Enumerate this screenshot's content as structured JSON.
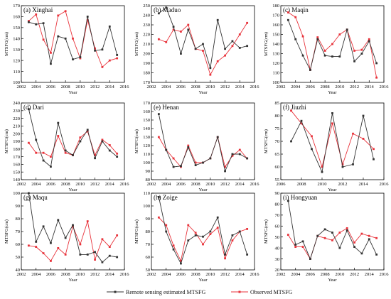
{
  "colors": {
    "remote": "#333333",
    "observed": "#e8333b",
    "axis": "#000000"
  },
  "legend": {
    "remote_label": "Remote sensing estimated MTSFG",
    "observed_label": "Observed MTSFG"
  },
  "chart_data": [
    {
      "type": "line",
      "title": "(a) Xinghai",
      "xlabel": "Year",
      "ylabel": "MTSFG(cm)",
      "xlim": [
        2002,
        2016
      ],
      "ylim": [
        100,
        170
      ],
      "xticks": [
        2002,
        2004,
        2006,
        2008,
        2010,
        2012,
        2014,
        2016
      ],
      "yticks": [
        100,
        110,
        120,
        130,
        140,
        150,
        160,
        170
      ],
      "x": [
        2003,
        2004,
        2005,
        2006,
        2007,
        2008,
        2009,
        2010,
        2011,
        2012,
        2013,
        2014,
        2015
      ],
      "series": [
        {
          "key": "remote",
          "values": [
            155,
            153,
            154,
            117,
            142,
            140,
            121,
            123,
            160,
            129,
            130,
            151,
            125
          ]
        },
        {
          "key": "observed",
          "values": [
            156,
            162,
            139,
            127,
            161,
            165,
            140,
            122,
            157,
            131,
            114,
            120,
            122
          ]
        }
      ]
    },
    {
      "type": "line",
      "title": "(b) Maduo",
      "xlabel": "Year",
      "ylabel": "MTSFG(cm)",
      "xlim": [
        2002,
        2016
      ],
      "ylim": [
        170,
        250
      ],
      "xticks": [
        2002,
        2004,
        2006,
        2008,
        2010,
        2012,
        2014,
        2016
      ],
      "yticks": [
        170,
        180,
        190,
        200,
        210,
        220,
        230,
        240,
        250
      ],
      "x": [
        2003,
        2004,
        2005,
        2006,
        2007,
        2008,
        2009,
        2010,
        2011,
        2012,
        2013,
        2014,
        2015
      ],
      "series": [
        {
          "key": "remote",
          "values": [
            242,
            248,
            228,
            200,
            225,
            205,
            210,
            185,
            235,
            205,
            213,
            206,
            208
          ]
        },
        {
          "key": "observed",
          "values": [
            215,
            212,
            225,
            223,
            230,
            205,
            203,
            178,
            192,
            198,
            208,
            220,
            232
          ]
        }
      ]
    },
    {
      "type": "line",
      "title": "(c) Maqin",
      "xlabel": "Year",
      "ylabel": "MTSFG(cm)",
      "xlim": [
        2002,
        2016
      ],
      "ylim": [
        100,
        180
      ],
      "xticks": [
        2002,
        2004,
        2006,
        2008,
        2010,
        2012,
        2014,
        2016
      ],
      "yticks": [
        100,
        110,
        120,
        130,
        140,
        150,
        160,
        170,
        180
      ],
      "x": [
        2003,
        2004,
        2005,
        2006,
        2007,
        2008,
        2009,
        2010,
        2011,
        2012,
        2013,
        2014,
        2015
      ],
      "series": [
        {
          "key": "remote",
          "values": [
            165,
            145,
            128,
            113,
            145,
            128,
            127,
            127,
            155,
            122,
            130,
            143,
            120
          ]
        },
        {
          "key": "observed",
          "values": [
            173,
            168,
            148,
            113,
            147,
            133,
            140,
            150,
            155,
            133,
            134,
            145,
            105
          ]
        }
      ]
    },
    {
      "type": "line",
      "title": "(d) Dari",
      "xlabel": "Year",
      "ylabel": "MTSFG(cm)",
      "xlim": [
        2002,
        2016
      ],
      "ylim": [
        140,
        240
      ],
      "xticks": [
        2002,
        2004,
        2006,
        2008,
        2010,
        2012,
        2014,
        2016
      ],
      "yticks": [
        140,
        150,
        160,
        170,
        180,
        190,
        200,
        210,
        220,
        230,
        240
      ],
      "x": [
        2003,
        2004,
        2005,
        2006,
        2007,
        2008,
        2009,
        2010,
        2011,
        2012,
        2013,
        2014,
        2015
      ],
      "series": [
        {
          "key": "remote",
          "values": [
            232,
            192,
            165,
            157,
            214,
            178,
            172,
            190,
            205,
            168,
            190,
            178,
            170
          ]
        },
        {
          "key": "observed",
          "values": [
            188,
            175,
            175,
            170,
            197,
            175,
            172,
            195,
            203,
            172,
            192,
            185,
            174
          ]
        }
      ]
    },
    {
      "type": "line",
      "title": "(e) Henan",
      "xlabel": "Year",
      "ylabel": "MTSFG(cm)",
      "xlim": [
        2002,
        2016
      ],
      "ylim": [
        80,
        170
      ],
      "xticks": [
        2002,
        2004,
        2006,
        2008,
        2010,
        2012,
        2014,
        2016
      ],
      "yticks": [
        80,
        90,
        100,
        110,
        120,
        130,
        140,
        150,
        160,
        170
      ],
      "x": [
        2003,
        2004,
        2005,
        2006,
        2007,
        2008,
        2009,
        2010,
        2011,
        2012,
        2013,
        2014,
        2015
      ],
      "series": [
        {
          "key": "remote",
          "values": [
            157,
            115,
            95,
            96,
            118,
            97,
            100,
            105,
            130,
            90,
            110,
            110,
            105
          ]
        },
        {
          "key": "observed",
          "values": [
            130,
            115,
            105,
            95,
            120,
            100,
            100,
            105,
            130,
            95,
            108,
            115,
            105
          ]
        }
      ]
    },
    {
      "type": "line",
      "title": "(f) Jiuzhi",
      "xlabel": "Year",
      "ylabel": "MTSFG(cm)",
      "xlim": [
        2006,
        2016
      ],
      "ylim": [
        55,
        85
      ],
      "xticks": [
        2006,
        2008,
        2010,
        2012,
        2014,
        2016
      ],
      "yticks": [
        55,
        60,
        65,
        70,
        75,
        80,
        85
      ],
      "x": [
        2007,
        2008,
        2009,
        2010,
        2011,
        2012,
        2013,
        2014,
        2015
      ],
      "series": [
        {
          "key": "remote",
          "values": [
            70,
            78,
            67,
            58,
            81,
            60,
            61,
            80,
            63
          ]
        },
        {
          "key": "observed",
          "values": [
            82,
            77,
            72,
            60,
            77,
            61,
            73,
            71,
            67
          ]
        }
      ]
    },
    {
      "type": "line",
      "title": "(g) Maqu",
      "xlabel": "Year",
      "ylabel": "MTSFG(cm)",
      "xlim": [
        2002,
        2016
      ],
      "ylim": [
        40,
        100
      ],
      "xticks": [
        2002,
        2004,
        2006,
        2008,
        2010,
        2012,
        2014,
        2016
      ],
      "yticks": [
        40,
        50,
        60,
        70,
        80,
        90,
        100
      ],
      "x": [
        2003,
        2004,
        2005,
        2006,
        2007,
        2008,
        2009,
        2010,
        2011,
        2012,
        2013,
        2014,
        2015
      ],
      "series": [
        {
          "key": "remote",
          "values": [
            100,
            62,
            74,
            61,
            79,
            65,
            75,
            52,
            52,
            54,
            46,
            51,
            50
          ]
        },
        {
          "key": "observed",
          "values": [
            59,
            58,
            53,
            47,
            57,
            52,
            74,
            60,
            78,
            48,
            64,
            58,
            67
          ]
        }
      ]
    },
    {
      "type": "line",
      "title": "(h) Zoige",
      "xlabel": "Year",
      "ylabel": "MTSFG(cm)",
      "xlim": [
        2002,
        2016
      ],
      "ylim": [
        50,
        110
      ],
      "xticks": [
        2002,
        2004,
        2006,
        2008,
        2010,
        2012,
        2014,
        2016
      ],
      "yticks": [
        50,
        60,
        70,
        80,
        90,
        100,
        110
      ],
      "x": [
        2003,
        2004,
        2005,
        2006,
        2007,
        2008,
        2009,
        2010,
        2011,
        2012,
        2013,
        2014,
        2015
      ],
      "series": [
        {
          "key": "remote",
          "values": [
            107,
            80,
            66,
            55,
            73,
            77,
            76,
            80,
            91,
            62,
            77,
            80,
            62
          ]
        },
        {
          "key": "observed",
          "values": [
            91,
            85,
            69,
            57,
            85,
            79,
            70,
            78,
            83,
            59,
            73,
            80,
            82
          ]
        }
      ]
    },
    {
      "type": "line",
      "title": "(i) Hongyuan",
      "xlabel": "Year",
      "ylabel": "MTSFG(cm)",
      "xlim": [
        2002,
        2016
      ],
      "ylim": [
        20,
        90
      ],
      "xticks": [
        2002,
        2004,
        2006,
        2008,
        2010,
        2012,
        2014,
        2016
      ],
      "yticks": [
        20,
        30,
        40,
        50,
        60,
        70,
        80,
        90
      ],
      "x": [
        2003,
        2004,
        2005,
        2006,
        2007,
        2008,
        2009,
        2010,
        2011,
        2012,
        2013,
        2014,
        2015
      ],
      "series": [
        {
          "key": "remote",
          "values": [
            83,
            43,
            46,
            30,
            51,
            57,
            54,
            40,
            56,
            41,
            35,
            48,
            34
          ]
        },
        {
          "key": "observed",
          "values": [
            52,
            41,
            41,
            30,
            51,
            49,
            47,
            54,
            58,
            45,
            53,
            51,
            49
          ]
        }
      ]
    }
  ]
}
